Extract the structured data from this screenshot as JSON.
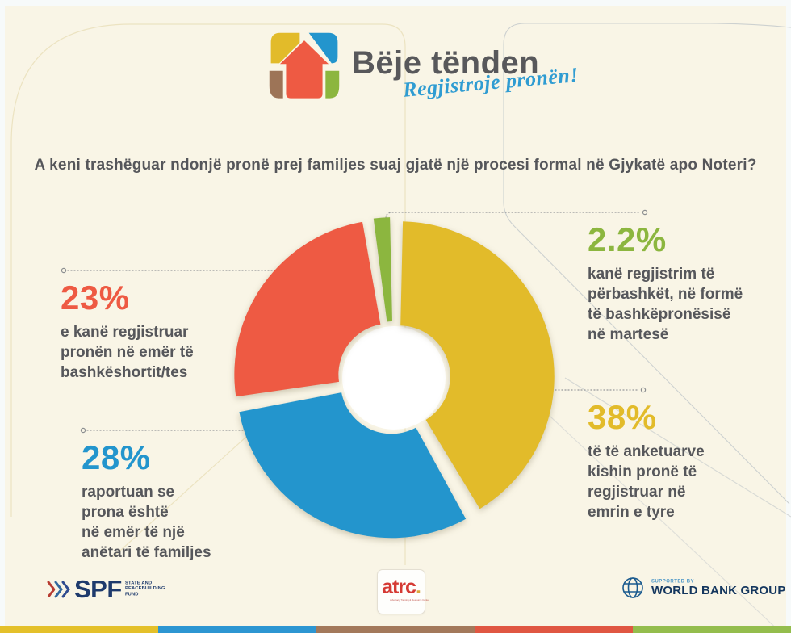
{
  "logo": {
    "title": "Bëje tënden",
    "tagline": "Regjistroje pronën!"
  },
  "question": {
    "text": "A keni trashëguar ndonjë pronë prej familjes suaj gjatë një procesi formal në Gjykatë apo Noteri?"
  },
  "chart_data": {
    "type": "pie",
    "donut": true,
    "title": "A keni trashëguar ndonjë pronë prej familjes suaj gjatë një procesi formal në Gjykatë apo Noteri?",
    "legend_position": "callouts",
    "start_angle_deg": 0,
    "gap_deg": 2.6,
    "segments": [
      {
        "display": "38%",
        "value": 38,
        "color": "#E2BB2A",
        "label": "të të anketuarve kishin pronë të regjistruar në emrin e tyre",
        "callout": "të të anketuarve\nkishin pronë të\nregjistruar në\nemrin e tyre"
      },
      {
        "display": "28%",
        "value": 28,
        "color": "#2395CD",
        "label": "raportuan se prona është në emër të një anëtari të familjes",
        "callout": "raportuan se\nprona është\nnë emër të një\nanëtari të familjes"
      },
      {
        "display": "23%",
        "value": 23,
        "color": "#EE5A43",
        "label": "e kanë regjistruar pronën në emër të bashkëshortit/tes",
        "callout": "e kanë regjistruar\npronën në emër të\nbashkëshortit/tes"
      },
      {
        "display": "2.2%",
        "value": 2.2,
        "color": "#8CB63F",
        "label": "kanë regjistrim të përbashkët, në formë të bashkëpronësisë në martesë",
        "callout": "kanë regjistrim të\npërbashkët, në formë\ntë bashkëpronësisë\nnë martesë"
      }
    ]
  },
  "footer": {
    "spf": {
      "acronym": "SPF",
      "label": "STATE AND\nPEACEBUILDING\nFUND"
    },
    "atrc": {
      "name": "atrc",
      "dot": ".",
      "sub": "Advocacy Training & Resource Center"
    },
    "worldbank": {
      "supported": "SUPPORTED BY",
      "name": "WORLD BANK GROUP"
    }
  },
  "stripes": [
    "#E4C02A",
    "#2D96D2",
    "#A3795B",
    "#E05742",
    "#94BD4D"
  ]
}
